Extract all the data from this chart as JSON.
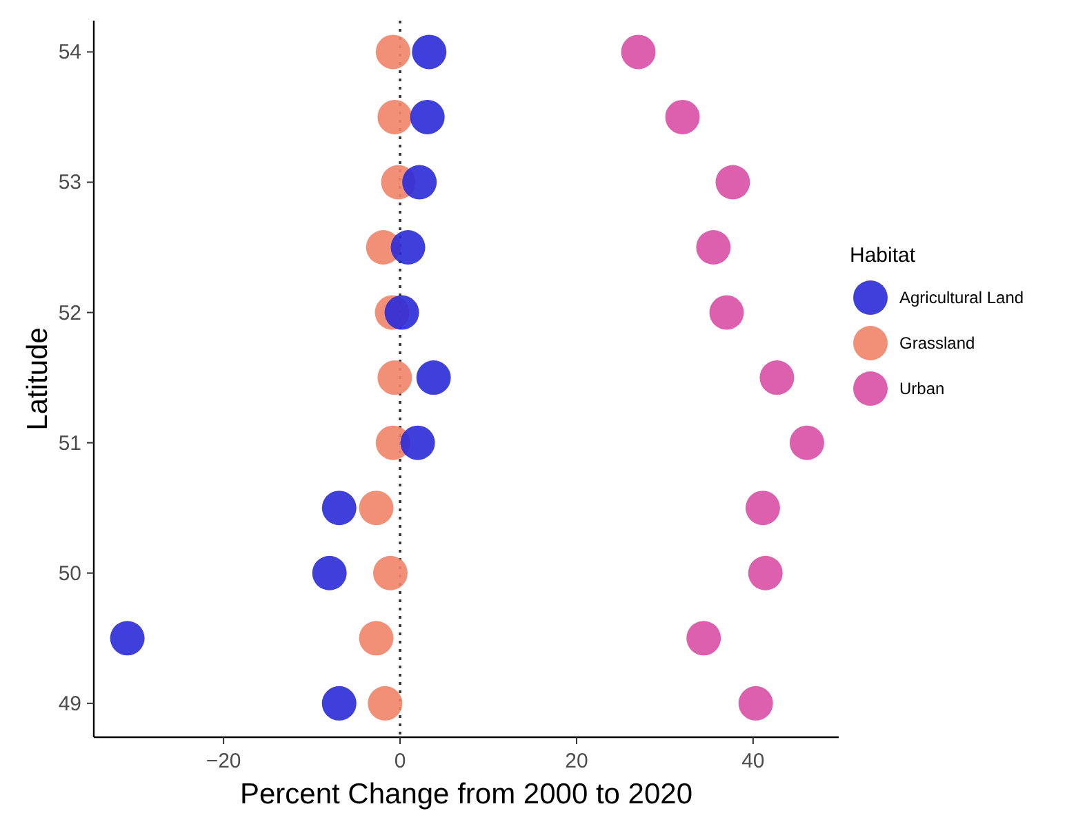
{
  "chart_data": {
    "type": "scatter",
    "xlabel": "Percent Change from 2000 to 2020",
    "ylabel": "Latitude",
    "legend_title": "Habitat",
    "legend": "right",
    "grid": false,
    "marker": "circle",
    "xlim": [
      -34.7,
      49.7
    ],
    "xticks": [
      {
        "value": -20,
        "label": "−20"
      },
      0,
      20,
      40
    ],
    "ylim": [
      48.74,
      54.24
    ],
    "yticks": [
      49,
      50,
      51,
      52,
      53,
      54
    ],
    "ref_lines": [
      {
        "axis": "x",
        "value": 0,
        "line_style": "dotted",
        "color": "#333333"
      }
    ],
    "series": [
      {
        "name": "Agricultural Land",
        "color": "#2a2ad8",
        "x": [
          -6.9,
          -30.9,
          -8.0,
          -6.9,
          2.0,
          3.8,
          0.2,
          0.9,
          2.2,
          3.1,
          3.3
        ],
        "values": [
          49,
          49.5,
          50,
          50.5,
          51,
          51.5,
          52,
          52.5,
          53,
          53.5,
          54
        ]
      },
      {
        "name": "Grassland",
        "color": "#f08468",
        "x": [
          -1.7,
          -2.7,
          -1.1,
          -2.7,
          -0.8,
          -0.6,
          -0.9,
          -1.9,
          -0.2,
          -0.6,
          -0.8
        ],
        "values": [
          49,
          49.5,
          50,
          50.5,
          51,
          51.5,
          52,
          52.5,
          53,
          53.5,
          54
        ]
      },
      {
        "name": "Urban",
        "color": "#d94fa6",
        "x": [
          40.3,
          34.4,
          41.4,
          41.1,
          46.1,
          42.7,
          37.0,
          35.5,
          37.7,
          32.0,
          27.0
        ],
        "values": [
          49,
          49.5,
          50,
          50.5,
          51,
          51.5,
          52,
          52.5,
          53,
          53.5,
          54
        ]
      }
    ]
  }
}
